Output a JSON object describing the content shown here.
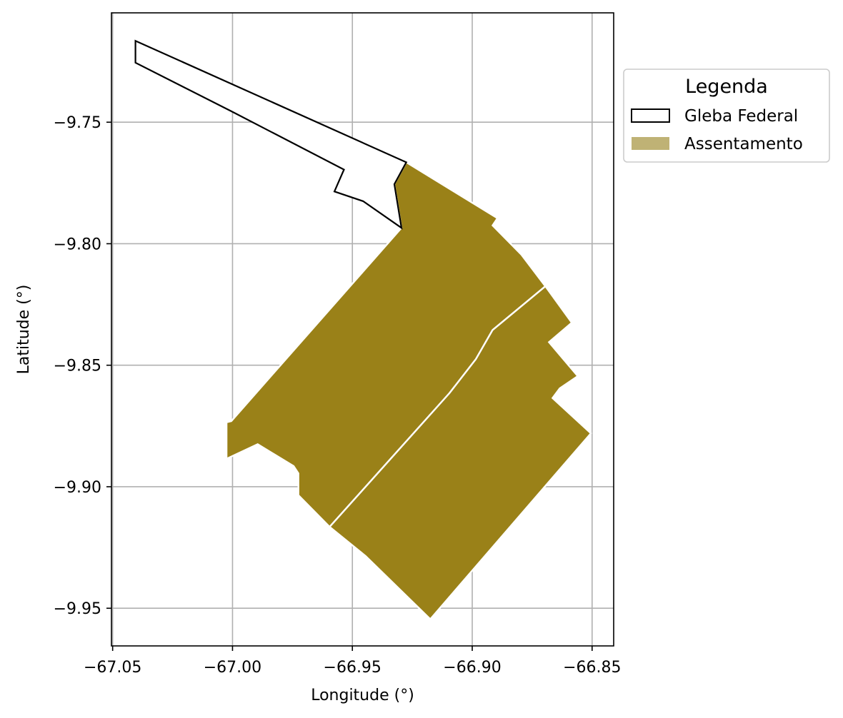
{
  "chart_data": {
    "type": "map",
    "title": "",
    "xlabel": "Longitude (°)",
    "ylabel": "Latitude (°)",
    "xlim": [
      -67.0505,
      -66.841
    ],
    "ylim": [
      -9.9655,
      -9.705
    ],
    "x_ticks": [
      {
        "value": -67.05,
        "label": "−67.05"
      },
      {
        "value": -67.0,
        "label": "−67.00"
      },
      {
        "value": -66.95,
        "label": "−66.95"
      },
      {
        "value": -66.9,
        "label": "−66.90"
      },
      {
        "value": -66.85,
        "label": "−66.85"
      }
    ],
    "y_ticks": [
      {
        "value": -9.75,
        "label": "−9.75"
      },
      {
        "value": -9.8,
        "label": "−9.80"
      },
      {
        "value": -9.85,
        "label": "−9.85"
      },
      {
        "value": -9.9,
        "label": "−9.90"
      },
      {
        "value": -9.95,
        "label": "−9.95"
      }
    ],
    "grid": true,
    "legend": {
      "title": "Legenda",
      "placement": "outside-right-top",
      "entries": [
        {
          "label": "Gleba Federal",
          "kind": "outline",
          "edge": "#000000",
          "fill": "#ffffff"
        },
        {
          "label": "Assentamento",
          "kind": "fill",
          "fill": "#bfb275"
        }
      ]
    },
    "layers": [
      {
        "name": "Assentamento",
        "fill": "#9a8118",
        "edge": "#ffffff",
        "polygons": [
          [
            [
              -66.9275,
              -9.7665
            ],
            [
              -66.8895,
              -9.7895
            ],
            [
              -66.8915,
              -9.7925
            ],
            [
              -66.8795,
              -9.8045
            ],
            [
              -66.8695,
              -9.8175
            ],
            [
              -66.8915,
              -9.8355
            ],
            [
              -66.8985,
              -9.8475
            ],
            [
              -66.9095,
              -9.8615
            ],
            [
              -66.9595,
              -9.9165
            ],
            [
              -66.9725,
              -9.9035
            ],
            [
              -66.9725,
              -9.8945
            ],
            [
              -66.9745,
              -9.8915
            ],
            [
              -66.9895,
              -9.8825
            ],
            [
              -67.0025,
              -9.8885
            ],
            [
              -67.0025,
              -9.8735
            ],
            [
              -67.0005,
              -9.873
            ],
            [
              -66.9295,
              -9.7935
            ],
            [
              -66.9325,
              -9.7755
            ]
          ],
          [
            [
              -66.8695,
              -9.8175
            ],
            [
              -66.8585,
              -9.8325
            ],
            [
              -66.868,
              -9.8405
            ],
            [
              -66.856,
              -9.8545
            ],
            [
              -66.8635,
              -9.8595
            ],
            [
              -66.8665,
              -9.8635
            ],
            [
              -66.8505,
              -9.878
            ],
            [
              -66.9175,
              -9.9545
            ],
            [
              -66.9445,
              -9.9285
            ],
            [
              -66.9595,
              -9.9165
            ],
            [
              -66.9095,
              -9.8615
            ],
            [
              -66.8985,
              -9.8475
            ],
            [
              -66.8915,
              -9.8355
            ]
          ]
        ]
      },
      {
        "name": "Gleba Federal",
        "fill": "#ffffff",
        "edge": "#000000",
        "polygons": [
          [
            [
              -67.0405,
              -9.7165
            ],
            [
              -66.9275,
              -9.7665
            ],
            [
              -66.9325,
              -9.7755
            ],
            [
              -66.9295,
              -9.7935
            ],
            [
              -66.9455,
              -9.7825
            ],
            [
              -66.9575,
              -9.7785
            ],
            [
              -66.9535,
              -9.7695
            ],
            [
              -67.0005,
              -9.7455
            ],
            [
              -67.0405,
              -9.7255
            ]
          ]
        ]
      }
    ]
  }
}
